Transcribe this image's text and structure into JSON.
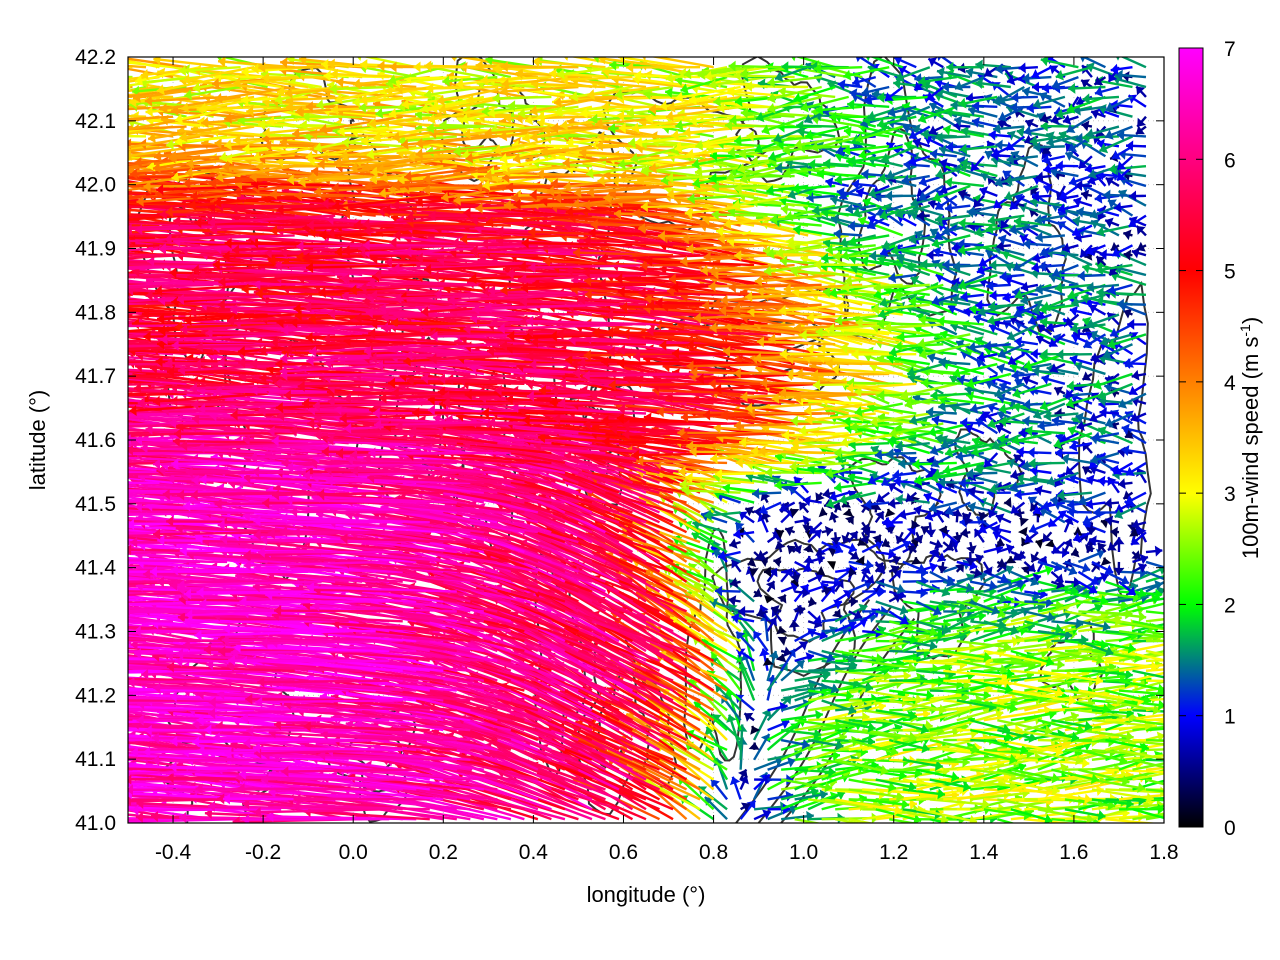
{
  "chart_data": {
    "type": "vector-field",
    "xlabel": "longitude (°)",
    "ylabel": "latitude (°)",
    "xlim": [
      -0.5,
      1.8
    ],
    "ylim": [
      41.0,
      42.2
    ],
    "xticks": [
      "-0.4",
      "-0.2",
      "0.0",
      "0.2",
      "0.4",
      "0.6",
      "0.8",
      "1.0",
      "1.2",
      "1.4",
      "1.6",
      "1.8"
    ],
    "yticks": [
      "41.0",
      "41.1",
      "41.2",
      "41.3",
      "41.4",
      "41.5",
      "41.6",
      "41.7",
      "41.8",
      "41.9",
      "42.0",
      "42.1",
      "42.2"
    ],
    "grid": true,
    "colorbar": {
      "label_main": "100m-wind speed (m s",
      "label_sup": "-1",
      "label_end": ")",
      "range": [
        0,
        7
      ],
      "ticks": [
        "0",
        "1",
        "2",
        "3",
        "4",
        "5",
        "6",
        "7"
      ],
      "colors": [
        "#000000",
        "#0000ff",
        "#00ff00",
        "#ffff00",
        "#ff8000",
        "#ff0000",
        "#ff00ff"
      ]
    },
    "wind_field": {
      "description_regimes": "strong easterly flow (5-7 m/s) west of 0.9°E between 41.1 and 41.9°N; weak variable winds (0-2 m/s) east of 1.0°E; westerly flow (2-4 m/s) in the southeast",
      "regions": [
        {
          "lon": [
            -0.5,
            0.6
          ],
          "lat": [
            41.6,
            42.0
          ],
          "u": -5.5,
          "v": 0.3
        },
        {
          "lon": [
            -0.5,
            0.5
          ],
          "lat": [
            41.1,
            41.6
          ],
          "u": -6.5,
          "v": 0.5
        },
        {
          "lon": [
            0.3,
            0.8
          ],
          "lat": [
            41.1,
            41.5
          ],
          "u": -5.0,
          "v": 3.0
        },
        {
          "lon": [
            0.5,
            1.3
          ],
          "lat": [
            41.6,
            41.9
          ],
          "u": -5.5,
          "v": 0.6
        },
        {
          "lon": [
            -0.5,
            1.0
          ],
          "lat": [
            42.0,
            42.2
          ],
          "u": -3.0,
          "v": 0.0
        },
        {
          "lon": [
            1.0,
            1.8
          ],
          "lat": [
            41.5,
            42.2
          ],
          "u": -1.0,
          "v": 0.0
        },
        {
          "lon": [
            1.0,
            1.8
          ],
          "lat": [
            41.0,
            41.35
          ],
          "u": 2.5,
          "v": 0.1
        },
        {
          "lon": [
            0.8,
            1.2
          ],
          "lat": [
            41.3,
            41.5
          ],
          "u": 0.5,
          "v": 0.0
        }
      ]
    },
    "contour_color": "#333333"
  }
}
